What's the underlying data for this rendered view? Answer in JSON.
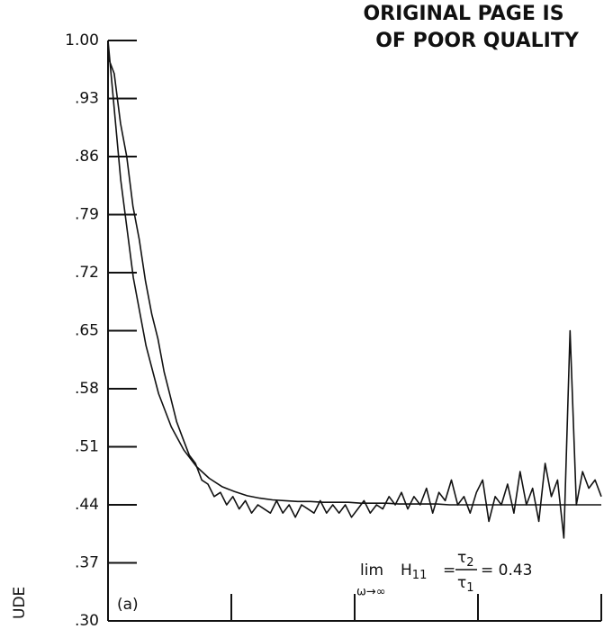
{
  "chart_data": {
    "type": "line",
    "stamp": [
      "ORIGINAL PAGE IS",
      "OF POOR QUALITY"
    ],
    "y_axis_label": "UDE",
    "panel_label": "(a)",
    "annotation": {
      "lim": "lim",
      "limit": "ω→∞",
      "symbol": "H",
      "subscript": "11",
      "equals": "=",
      "numerator": "τ",
      "numerator_sub": "2",
      "denominator": "τ",
      "denominator_sub": "1",
      "result": "= 0.43"
    },
    "ylim": [
      0.3,
      1.0
    ],
    "yticks": [
      {
        "value": 0.3,
        "label": ".30"
      },
      {
        "value": 0.37,
        "label": ".37"
      },
      {
        "value": 0.44,
        "label": ".44"
      },
      {
        "value": 0.51,
        "label": ".51"
      },
      {
        "value": 0.58,
        "label": ".58"
      },
      {
        "value": 0.65,
        "label": ".65"
      },
      {
        "value": 0.72,
        "label": ".72"
      },
      {
        "value": 0.79,
        "label": ".79"
      },
      {
        "value": 0.86,
        "label": ".86"
      },
      {
        "value": 0.93,
        "label": ".93"
      },
      {
        "value": 1.0,
        "label": "1.00"
      }
    ],
    "xlim": [
      0,
      4
    ],
    "xticks": [
      1,
      2,
      3,
      4
    ],
    "series": [
      {
        "color": "#111",
        "values": [
          1.0,
          0.832,
          0.714,
          0.632,
          0.574,
          0.534,
          0.506,
          0.486,
          0.472,
          0.462,
          0.456,
          0.451,
          0.448,
          0.446,
          0.445,
          0.444,
          0.444,
          0.443,
          0.443,
          0.443,
          0.442,
          0.442,
          0.442,
          0.441,
          0.441,
          0.441,
          0.441,
          0.44,
          0.44,
          0.44,
          0.44,
          0.44,
          0.44,
          0.44,
          0.44,
          0.44,
          0.44,
          0.44,
          0.44,
          0.44
        ]
      },
      {
        "color": "#111",
        "values": [
          0.98,
          0.96,
          0.9,
          0.86,
          0.8,
          0.76,
          0.71,
          0.67,
          0.64,
          0.6,
          0.57,
          0.54,
          0.52,
          0.5,
          0.49,
          0.47,
          0.465,
          0.45,
          0.455,
          0.44,
          0.45,
          0.435,
          0.445,
          0.43,
          0.44,
          0.435,
          0.43,
          0.445,
          0.43,
          0.44,
          0.425,
          0.44,
          0.435,
          0.43,
          0.445,
          0.43,
          0.44,
          0.43,
          0.44,
          0.425,
          0.435,
          0.445,
          0.43,
          0.44,
          0.435,
          0.45,
          0.44,
          0.455,
          0.435,
          0.45,
          0.44,
          0.46,
          0.43,
          0.455,
          0.445,
          0.47,
          0.44,
          0.45,
          0.43,
          0.455,
          0.47,
          0.42,
          0.45,
          0.44,
          0.465,
          0.43,
          0.48,
          0.44,
          0.46,
          0.42,
          0.49,
          0.45,
          0.47,
          0.4,
          0.65,
          0.44,
          0.48,
          0.46,
          0.47,
          0.45
        ]
      }
    ]
  }
}
